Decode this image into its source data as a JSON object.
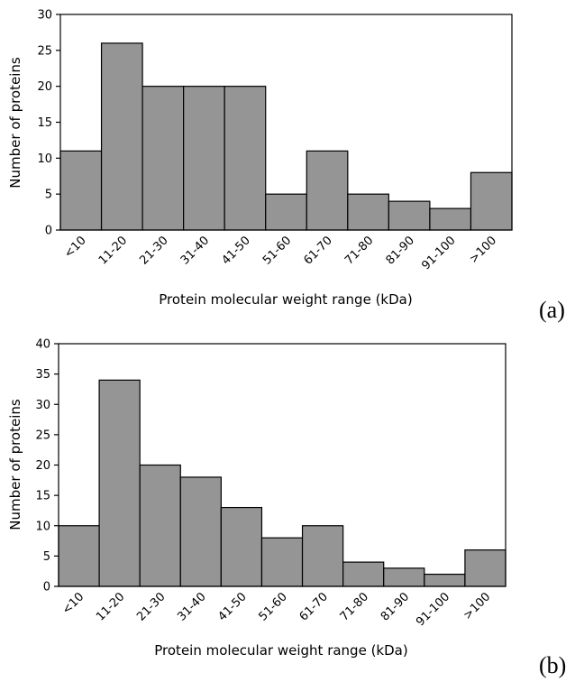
{
  "chart_data": [
    {
      "type": "bar",
      "panel_label": "(a)",
      "categories": [
        "<10",
        "11-20",
        "21-30",
        "31-40",
        "41-50",
        "51-60",
        "61-70",
        "71-80",
        "81-90",
        "91-100",
        ">100"
      ],
      "values": [
        11,
        26,
        20,
        20,
        20,
        5,
        11,
        5,
        4,
        3,
        8
      ],
      "xlabel": "Protein molecular weight range (kDa)",
      "ylabel": "Number of proteins",
      "ylim": [
        0,
        30
      ],
      "yticks": [
        0,
        5,
        10,
        15,
        20,
        25,
        30
      ],
      "grid": false,
      "bar_color": "#959595"
    },
    {
      "type": "bar",
      "panel_label": "(b)",
      "categories": [
        "<10",
        "11-20",
        "21-30",
        "31-40",
        "41-50",
        "51-60",
        "61-70",
        "71-80",
        "81-90",
        "91-100",
        ">100"
      ],
      "values": [
        10,
        34,
        20,
        18,
        13,
        8,
        10,
        4,
        3,
        2,
        6
      ],
      "xlabel": "Protein molecular weight range (kDa)",
      "ylabel": "Number of proteins",
      "ylim": [
        0,
        40
      ],
      "yticks": [
        0,
        5,
        10,
        15,
        20,
        25,
        30,
        35,
        40
      ],
      "grid": false,
      "bar_color": "#959595"
    }
  ]
}
